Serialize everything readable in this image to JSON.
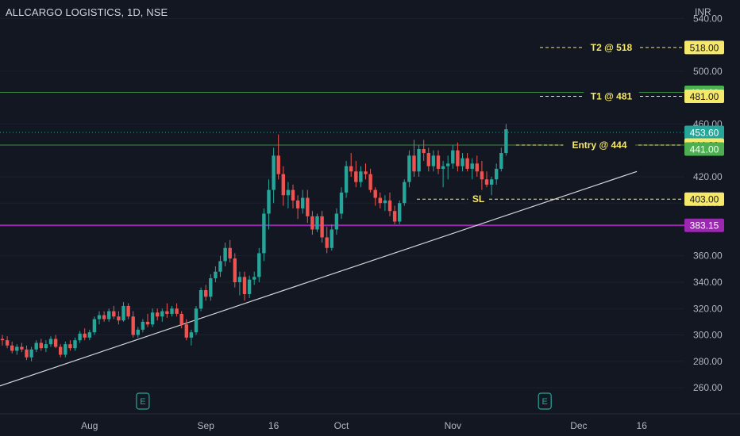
{
  "header": {
    "title": "ALLCARGO LOGISTICS, 1D, NSE",
    "currency": "INR"
  },
  "colors": {
    "background": "#131722",
    "up": "#26a69a",
    "down": "#ef5350",
    "annotation": "#f5e86a",
    "level_line": "#4caf50",
    "support_line": "#9c27b0",
    "trendline": "#d1d4dc"
  },
  "chart_data": {
    "type": "candlestick",
    "title": "ALLCARGO LOGISTICS, 1D, NSE",
    "ylabel": "INR",
    "ylim": [
      250,
      548
    ],
    "y_ticks": [
      "260.00",
      "280.00",
      "300.00",
      "320.00",
      "340.00",
      "360.00",
      "400.00",
      "420.00",
      "460.00",
      "500.00",
      "540.00"
    ],
    "x_ticks": [
      "Aug",
      "Sep",
      "16",
      "Oct",
      "Nov",
      "Dec",
      "16"
    ],
    "price_tags": [
      {
        "text": "518.00",
        "value": 518,
        "style": "yellow"
      },
      {
        "text": "484.00",
        "value": 484,
        "style": "green"
      },
      {
        "text": "481.00",
        "value": 481,
        "style": "yellow"
      },
      {
        "text": "453.60",
        "value": 453.6,
        "style": "teal"
      },
      {
        "text": "444.00",
        "value": 444,
        "style": "yellow"
      },
      {
        "text": "441.00",
        "value": 441,
        "style": "green"
      },
      {
        "text": "403.00",
        "value": 403,
        "style": "yellow"
      },
      {
        "text": "383.15",
        "value": 383.15,
        "style": "purple"
      }
    ],
    "annotations": [
      {
        "text": "T2 @ 518",
        "value": 518
      },
      {
        "text": "T1 @ 481",
        "value": 481
      },
      {
        "text": "Entry @ 444",
        "value": 444
      },
      {
        "text": "SL",
        "value": 403
      }
    ],
    "levels": [
      {
        "value": 484,
        "kind": "solid-green"
      },
      {
        "value": 453.6,
        "kind": "dotted-teal"
      },
      {
        "value": 444,
        "kind": "solid-green"
      },
      {
        "value": 383.15,
        "kind": "solid-purple"
      }
    ],
    "trendline": {
      "from": {
        "bar": 0,
        "value": 262
      },
      "to": {
        "bar": 131,
        "value": 424
      }
    },
    "earnings_markers": [
      {
        "bar": 29,
        "label": "E"
      },
      {
        "bar": 112,
        "label": "E"
      }
    ],
    "candles": [
      [
        297,
        300,
        292,
        296
      ],
      [
        296,
        299,
        290,
        292
      ],
      [
        292,
        295,
        286,
        288
      ],
      [
        288,
        293,
        285,
        291
      ],
      [
        291,
        294,
        287,
        289
      ],
      [
        289,
        292,
        281,
        283
      ],
      [
        283,
        291,
        280,
        289
      ],
      [
        289,
        296,
        287,
        294
      ],
      [
        294,
        297,
        288,
        290
      ],
      [
        290,
        296,
        287,
        293
      ],
      [
        293,
        299,
        291,
        297
      ],
      [
        297,
        300,
        290,
        291
      ],
      [
        291,
        293,
        283,
        285
      ],
      [
        285,
        295,
        283,
        293
      ],
      [
        293,
        296,
        288,
        290
      ],
      [
        290,
        298,
        288,
        296
      ],
      [
        296,
        303,
        294,
        301
      ],
      [
        301,
        305,
        296,
        298
      ],
      [
        298,
        304,
        296,
        302
      ],
      [
        302,
        314,
        300,
        312
      ],
      [
        312,
        318,
        308,
        315
      ],
      [
        315,
        318,
        310,
        312
      ],
      [
        312,
        320,
        310,
        318
      ],
      [
        318,
        322,
        312,
        314
      ],
      [
        314,
        318,
        308,
        311
      ],
      [
        311,
        325,
        310,
        322
      ],
      [
        322,
        324,
        312,
        314
      ],
      [
        314,
        318,
        298,
        300
      ],
      [
        300,
        306,
        298,
        304
      ],
      [
        304,
        312,
        302,
        310
      ],
      [
        310,
        316,
        306,
        308
      ],
      [
        308,
        320,
        306,
        317
      ],
      [
        317,
        320,
        311,
        314
      ],
      [
        314,
        320,
        310,
        318
      ],
      [
        318,
        324,
        313,
        316
      ],
      [
        316,
        322,
        314,
        320
      ],
      [
        320,
        324,
        314,
        316
      ],
      [
        316,
        318,
        305,
        308
      ],
      [
        308,
        312,
        296,
        298
      ],
      [
        298,
        304,
        292,
        302
      ],
      [
        302,
        322,
        300,
        320
      ],
      [
        320,
        336,
        318,
        334
      ],
      [
        334,
        338,
        326,
        329
      ],
      [
        329,
        346,
        326,
        343
      ],
      [
        343,
        352,
        340,
        348
      ],
      [
        348,
        360,
        344,
        356
      ],
      [
        356,
        370,
        352,
        366
      ],
      [
        366,
        372,
        355,
        358
      ],
      [
        358,
        362,
        336,
        340
      ],
      [
        340,
        348,
        330,
        344
      ],
      [
        344,
        348,
        326,
        331
      ],
      [
        331,
        345,
        328,
        342
      ],
      [
        342,
        348,
        338,
        344
      ],
      [
        344,
        366,
        340,
        362
      ],
      [
        362,
        396,
        356,
        392
      ],
      [
        392,
        418,
        380,
        410
      ],
      [
        410,
        442,
        400,
        436
      ],
      [
        436,
        452,
        418,
        422
      ],
      [
        422,
        428,
        398,
        406
      ],
      [
        406,
        416,
        396,
        410
      ],
      [
        410,
        414,
        396,
        402
      ],
      [
        402,
        406,
        388,
        396
      ],
      [
        396,
        410,
        392,
        404
      ],
      [
        404,
        410,
        385,
        390
      ],
      [
        390,
        394,
        376,
        380
      ],
      [
        380,
        392,
        378,
        390
      ],
      [
        390,
        394,
        370,
        374
      ],
      [
        374,
        382,
        362,
        366
      ],
      [
        366,
        384,
        364,
        380
      ],
      [
        380,
        396,
        376,
        392
      ],
      [
        392,
        412,
        388,
        408
      ],
      [
        408,
        432,
        404,
        428
      ],
      [
        428,
        438,
        420,
        424
      ],
      [
        424,
        432,
        412,
        416
      ],
      [
        416,
        428,
        412,
        424
      ],
      [
        424,
        430,
        418,
        422
      ],
      [
        422,
        426,
        408,
        410
      ],
      [
        410,
        412,
        398,
        404
      ],
      [
        404,
        408,
        396,
        400
      ],
      [
        400,
        406,
        394,
        402
      ],
      [
        402,
        408,
        390,
        394
      ],
      [
        394,
        398,
        384,
        386
      ],
      [
        386,
        402,
        384,
        400
      ],
      [
        400,
        418,
        398,
        416
      ],
      [
        416,
        440,
        412,
        436
      ],
      [
        436,
        448,
        420,
        424
      ],
      [
        424,
        444,
        420,
        441
      ],
      [
        441,
        448,
        432,
        438
      ],
      [
        438,
        442,
        424,
        428
      ],
      [
        428,
        440,
        424,
        436
      ],
      [
        436,
        440,
        422,
        426
      ],
      [
        426,
        432,
        412,
        428
      ],
      [
        428,
        436,
        418,
        430
      ],
      [
        430,
        444,
        426,
        440
      ],
      [
        440,
        446,
        424,
        428
      ],
      [
        428,
        438,
        424,
        434
      ],
      [
        434,
        438,
        424,
        426
      ],
      [
        426,
        434,
        418,
        430
      ],
      [
        430,
        436,
        420,
        424
      ],
      [
        424,
        432,
        410,
        418
      ],
      [
        418,
        424,
        412,
        414
      ],
      [
        414,
        420,
        406,
        418
      ],
      [
        418,
        430,
        414,
        426
      ],
      [
        426,
        442,
        424,
        438
      ],
      [
        438,
        460,
        436,
        456
      ]
    ]
  }
}
